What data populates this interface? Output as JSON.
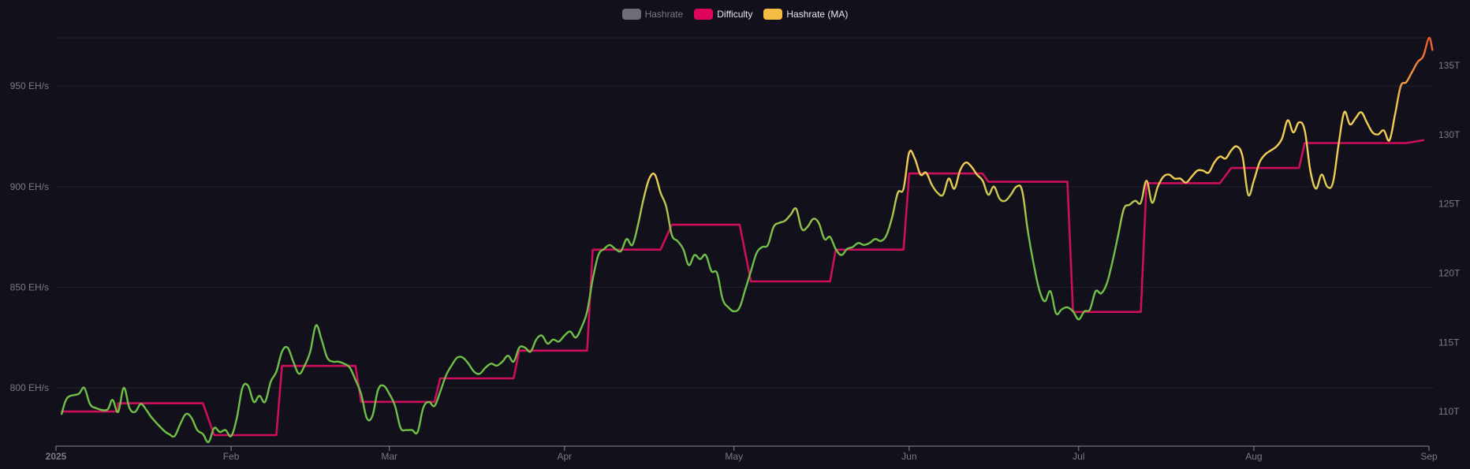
{
  "legend": [
    {
      "label": "Hashrate",
      "color": "#6e6d77",
      "hidden": true
    },
    {
      "label": "Difficulty",
      "color": "#e0055c",
      "hidden": false
    },
    {
      "label": "Hashrate (MA)",
      "color": "#f5bc43",
      "hidden": false
    }
  ],
  "colors": {
    "background": "#12111b",
    "grid": "#22212c",
    "axis": "#8a8992",
    "tick_text": "#7c7b85",
    "difficulty": "#cc0e5c",
    "ma_low": "#6fc046",
    "ma_mid": "#f2cd53",
    "ma_high": "#f0582e"
  },
  "chart_data": {
    "type": "line",
    "x_ticks": [
      "2025",
      "Feb",
      "Mar",
      "Apr",
      "May",
      "Jun",
      "Jul",
      "Aug",
      "Sep"
    ],
    "x_range_days": [
      0,
      243
    ],
    "y_left": {
      "ticks": [
        "800 EH/s",
        "850 EH/s",
        "900 EH/s",
        "950 EH/s"
      ],
      "tick_values": [
        800,
        850,
        900,
        950
      ],
      "range": [
        771,
        974
      ]
    },
    "y_right": {
      "ticks": [
        "110T",
        "115T",
        "120T",
        "125T",
        "130T",
        "135T"
      ],
      "tick_values": [
        110,
        115,
        120,
        125,
        130,
        135
      ],
      "range": [
        107.5,
        137
      ]
    },
    "series": [
      {
        "name": "Difficulty",
        "axis": "right",
        "step": true,
        "points": [
          [
            1,
            110.0
          ],
          [
            11,
            110.0
          ],
          [
            11,
            110.6
          ],
          [
            26,
            110.6
          ],
          [
            28,
            108.3
          ],
          [
            39,
            108.3
          ],
          [
            40,
            113.3
          ],
          [
            53,
            113.3
          ],
          [
            54,
            110.7
          ],
          [
            67,
            110.7
          ],
          [
            68,
            112.4
          ],
          [
            81,
            112.4
          ],
          [
            82,
            114.4
          ],
          [
            94,
            114.4
          ],
          [
            95,
            121.7
          ],
          [
            107,
            121.7
          ],
          [
            109,
            123.5
          ],
          [
            121,
            123.5
          ],
          [
            123,
            119.4
          ],
          [
            137,
            119.4
          ],
          [
            138,
            121.7
          ],
          [
            150,
            121.7
          ],
          [
            151,
            127.2
          ],
          [
            164,
            127.2
          ],
          [
            165,
            126.6
          ],
          [
            179,
            126.6
          ],
          [
            180,
            117.2
          ],
          [
            192,
            117.2
          ],
          [
            193,
            126.5
          ],
          [
            206,
            126.5
          ],
          [
            208,
            127.6
          ],
          [
            220,
            127.6
          ],
          [
            221,
            129.4
          ],
          [
            239,
            129.4
          ],
          [
            242,
            129.6
          ]
        ]
      },
      {
        "name": "Hashrate (MA)",
        "axis": "left",
        "points": [
          [
            1,
            787
          ],
          [
            2,
            795
          ],
          [
            4,
            797
          ],
          [
            5,
            800
          ],
          [
            6,
            792
          ],
          [
            7,
            790
          ],
          [
            9,
            789
          ],
          [
            10,
            794
          ],
          [
            11,
            788
          ],
          [
            12,
            800
          ],
          [
            13,
            790
          ],
          [
            14,
            788
          ],
          [
            15,
            792
          ],
          [
            16,
            789
          ],
          [
            17,
            785
          ],
          [
            19,
            779
          ],
          [
            20,
            777
          ],
          [
            21,
            776
          ],
          [
            22,
            782
          ],
          [
            23,
            787
          ],
          [
            24,
            785
          ],
          [
            25,
            779
          ],
          [
            26,
            777
          ],
          [
            27,
            773
          ],
          [
            28,
            780
          ],
          [
            29,
            778
          ],
          [
            30,
            779
          ],
          [
            31,
            776
          ],
          [
            32,
            785
          ],
          [
            33,
            800
          ],
          [
            34,
            801
          ],
          [
            35,
            793
          ],
          [
            36,
            796
          ],
          [
            37,
            793
          ],
          [
            38,
            803
          ],
          [
            39,
            808
          ],
          [
            40,
            818
          ],
          [
            41,
            820
          ],
          [
            42,
            813
          ],
          [
            43,
            807
          ],
          [
            44,
            811
          ],
          [
            45,
            818
          ],
          [
            46,
            831
          ],
          [
            47,
            824
          ],
          [
            48,
            815
          ],
          [
            49,
            813
          ],
          [
            50,
            813
          ],
          [
            51,
            812
          ],
          [
            52,
            810
          ],
          [
            53,
            804
          ],
          [
            54,
            797
          ],
          [
            55,
            785
          ],
          [
            56,
            786
          ],
          [
            57,
            799
          ],
          [
            58,
            801
          ],
          [
            59,
            797
          ],
          [
            60,
            791
          ],
          [
            61,
            780
          ],
          [
            62,
            779
          ],
          [
            63,
            779
          ],
          [
            64,
            778
          ],
          [
            65,
            790
          ],
          [
            66,
            793
          ],
          [
            67,
            791
          ],
          [
            68,
            798
          ],
          [
            69,
            806
          ],
          [
            70,
            811
          ],
          [
            71,
            815
          ],
          [
            72,
            815
          ],
          [
            73,
            812
          ],
          [
            74,
            808
          ],
          [
            75,
            807
          ],
          [
            76,
            810
          ],
          [
            77,
            812
          ],
          [
            78,
            811
          ],
          [
            79,
            813
          ],
          [
            80,
            816
          ],
          [
            81,
            813
          ],
          [
            82,
            820
          ],
          [
            83,
            820
          ],
          [
            84,
            818
          ],
          [
            85,
            824
          ],
          [
            86,
            826
          ],
          [
            87,
            822
          ],
          [
            88,
            824
          ],
          [
            89,
            823
          ],
          [
            90,
            826
          ],
          [
            91,
            828
          ],
          [
            92,
            825
          ],
          [
            93,
            830
          ],
          [
            94,
            838
          ],
          [
            95,
            854
          ],
          [
            96,
            866
          ],
          [
            97,
            869
          ],
          [
            98,
            871
          ],
          [
            99,
            869
          ],
          [
            100,
            868
          ],
          [
            101,
            874
          ],
          [
            102,
            871
          ],
          [
            103,
            881
          ],
          [
            104,
            894
          ],
          [
            105,
            904
          ],
          [
            106,
            906
          ],
          [
            107,
            897
          ],
          [
            108,
            890
          ],
          [
            109,
            876
          ],
          [
            110,
            873
          ],
          [
            111,
            869
          ],
          [
            112,
            861
          ],
          [
            113,
            866
          ],
          [
            114,
            864
          ],
          [
            115,
            866
          ],
          [
            116,
            858
          ],
          [
            117,
            857
          ],
          [
            118,
            844
          ],
          [
            119,
            840
          ],
          [
            120,
            838
          ],
          [
            121,
            840
          ],
          [
            122,
            849
          ],
          [
            123,
            858
          ],
          [
            124,
            867
          ],
          [
            125,
            870
          ],
          [
            126,
            871
          ],
          [
            127,
            880
          ],
          [
            128,
            882
          ],
          [
            129,
            883
          ],
          [
            130,
            886
          ],
          [
            131,
            889
          ],
          [
            132,
            879
          ],
          [
            133,
            880
          ],
          [
            134,
            884
          ],
          [
            135,
            882
          ],
          [
            136,
            874
          ],
          [
            137,
            875
          ],
          [
            138,
            869
          ],
          [
            139,
            866
          ],
          [
            140,
            869
          ],
          [
            141,
            870
          ],
          [
            142,
            872
          ],
          [
            143,
            871
          ],
          [
            144,
            872
          ],
          [
            145,
            874
          ],
          [
            146,
            873
          ],
          [
            147,
            876
          ],
          [
            148,
            885
          ],
          [
            149,
            897
          ],
          [
            150,
            899
          ],
          [
            151,
            917
          ],
          [
            152,
            914
          ],
          [
            153,
            906
          ],
          [
            154,
            907
          ],
          [
            155,
            901
          ],
          [
            156,
            897
          ],
          [
            157,
            896
          ],
          [
            158,
            904
          ],
          [
            159,
            899
          ],
          [
            160,
            908
          ],
          [
            161,
            912
          ],
          [
            162,
            910
          ],
          [
            163,
            906
          ],
          [
            164,
            903
          ],
          [
            165,
            896
          ],
          [
            166,
            900
          ],
          [
            167,
            894
          ],
          [
            168,
            893
          ],
          [
            169,
            896
          ],
          [
            170,
            900
          ],
          [
            171,
            898
          ],
          [
            172,
            878
          ],
          [
            173,
            862
          ],
          [
            174,
            849
          ],
          [
            175,
            843
          ],
          [
            176,
            848
          ],
          [
            177,
            837
          ],
          [
            178,
            839
          ],
          [
            179,
            840
          ],
          [
            180,
            838
          ],
          [
            181,
            834
          ],
          [
            182,
            838
          ],
          [
            183,
            839
          ],
          [
            184,
            848
          ],
          [
            185,
            847
          ],
          [
            186,
            852
          ],
          [
            187,
            863
          ],
          [
            188,
            876
          ],
          [
            189,
            889
          ],
          [
            190,
            891
          ],
          [
            191,
            893
          ],
          [
            192,
            892
          ],
          [
            193,
            903
          ],
          [
            194,
            892
          ],
          [
            195,
            900
          ],
          [
            196,
            905
          ],
          [
            197,
            906
          ],
          [
            198,
            904
          ],
          [
            199,
            904
          ],
          [
            200,
            902
          ],
          [
            201,
            905
          ],
          [
            202,
            908
          ],
          [
            203,
            908
          ],
          [
            204,
            907
          ],
          [
            205,
            912
          ],
          [
            206,
            915
          ],
          [
            207,
            914
          ],
          [
            208,
            918
          ],
          [
            209,
            920
          ],
          [
            210,
            915
          ],
          [
            211,
            896
          ],
          [
            212,
            903
          ],
          [
            213,
            912
          ],
          [
            214,
            916
          ],
          [
            215,
            918
          ],
          [
            216,
            920
          ],
          [
            217,
            924
          ],
          [
            218,
            933
          ],
          [
            219,
            927
          ],
          [
            220,
            932
          ],
          [
            221,
            928
          ],
          [
            222,
            908
          ],
          [
            223,
            899
          ],
          [
            224,
            906
          ],
          [
            225,
            900
          ],
          [
            226,
            902
          ],
          [
            227,
            921
          ],
          [
            228,
            937
          ],
          [
            229,
            931
          ],
          [
            230,
            934
          ],
          [
            231,
            937
          ],
          [
            232,
            932
          ],
          [
            233,
            927
          ],
          [
            234,
            926
          ],
          [
            235,
            928
          ],
          [
            236,
            923
          ],
          [
            237,
            936
          ],
          [
            238,
            950
          ],
          [
            239,
            952
          ],
          [
            240,
            957
          ],
          [
            241,
            962
          ],
          [
            242,
            965
          ],
          [
            243,
            974
          ],
          [
            243.6,
            968
          ]
        ]
      }
    ]
  }
}
